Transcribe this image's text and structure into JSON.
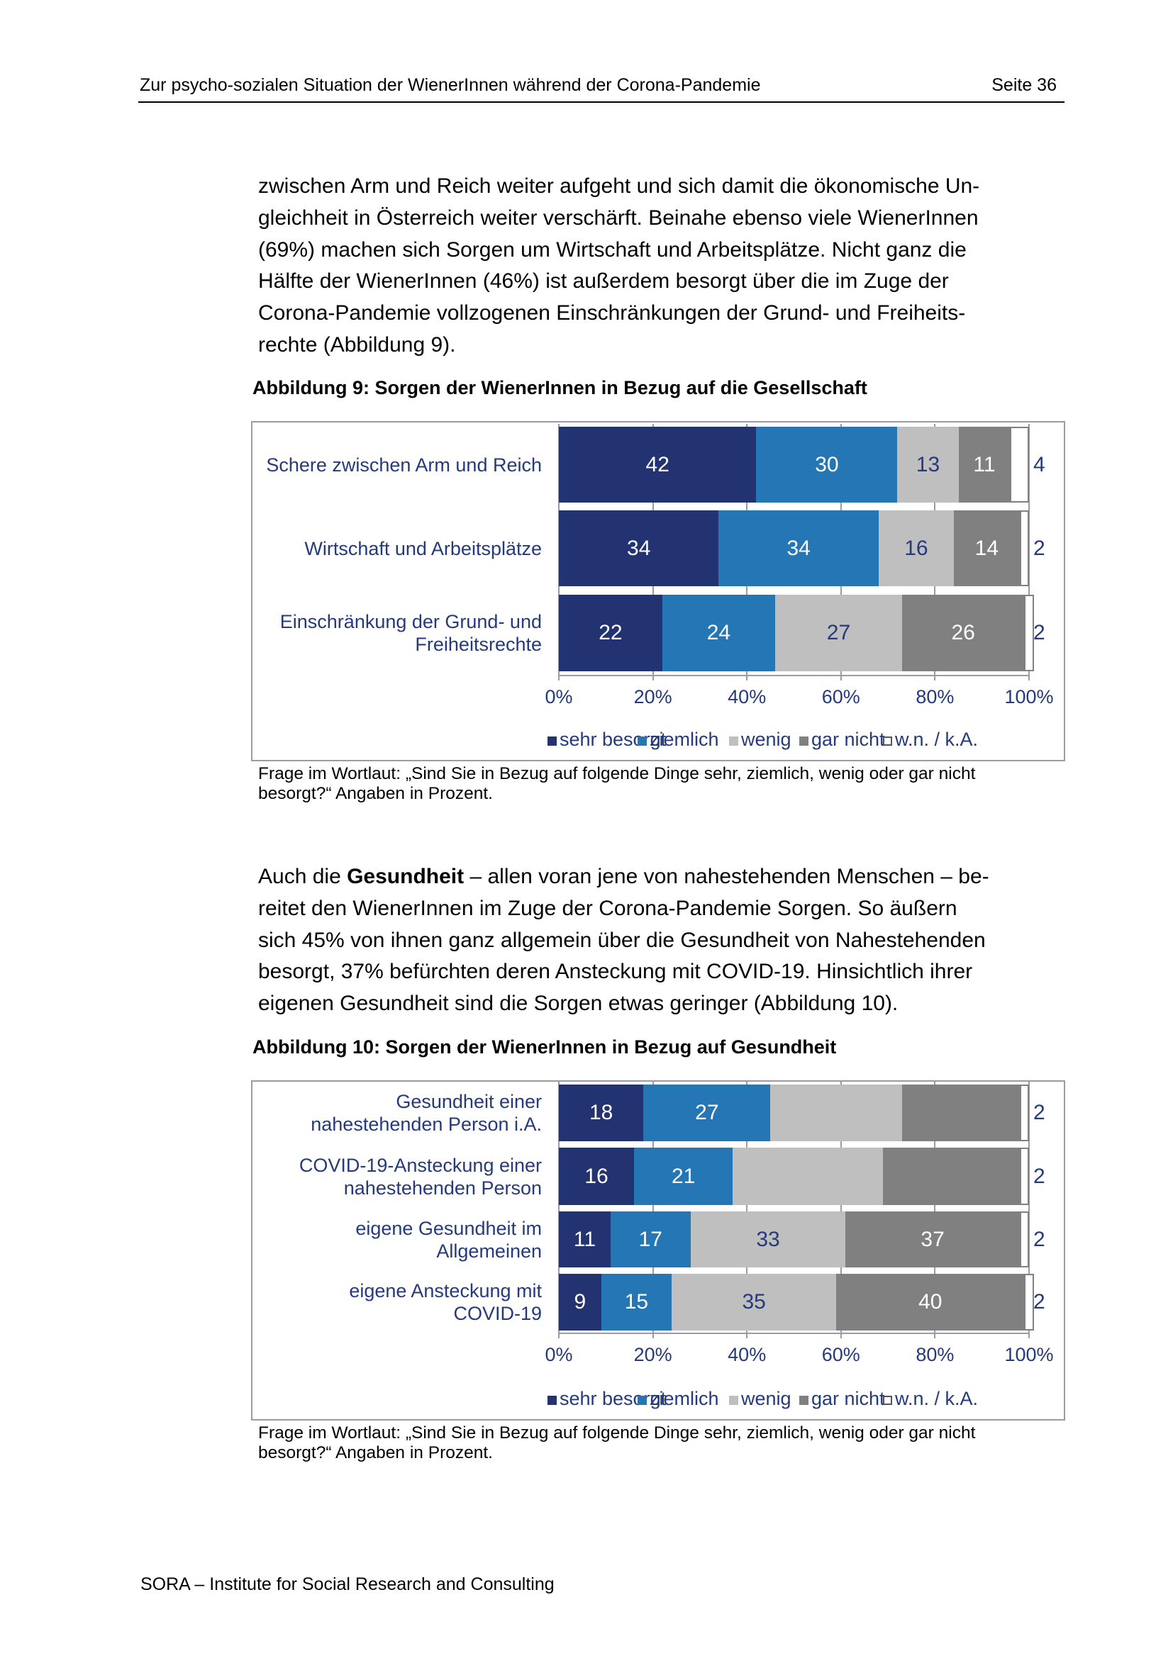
{
  "header": {
    "title": "Zur psycho-sozialen Situation der WienerInnen während der Corona-Pandemie",
    "page": "Seite 36"
  },
  "paragraph1": [
    "zwischen Arm und Reich weiter aufgeht und sich damit die ökonomische Un-",
    "gleichheit in Österreich weiter verschärft. Beinahe ebenso viele WienerInnen",
    "(69%) machen sich Sorgen um Wirtschaft und Arbeitsplätze. Nicht ganz die",
    "Hälfte der WienerInnen (46%) ist außerdem besorgt über die im Zuge der",
    "Corona-Pandemie vollzogenen Einschränkungen der Grund- und Freiheits-",
    "rechte (Abbildung 9)."
  ],
  "paragraph2": {
    "first_pre": "Auch die ",
    "first_bold": "Gesundheit",
    "first_post": " – allen voran jene von nahestehenden Menschen – be-",
    "rest": [
      "reitet den WienerInnen im Zuge der Corona-Pandemie Sorgen. So äußern",
      "sich 45% von ihnen ganz allgemein über die Gesundheit von Nahestehenden",
      "besorgt, 37% befürchten deren Ansteckung mit COVID-19. Hinsichtlich ihrer",
      "eigenen Gesundheit sind die Sorgen etwas geringer (Abbildung 10)."
    ]
  },
  "footer": "SORA – Institute for Social Research and Consulting",
  "colors": {
    "sehr besorgt": "#233372",
    "ziemlich": "#2476b5",
    "wenig": "#bfbfbf",
    "gar nicht": "#808080",
    "w.n. / k.A.": "#ffffff"
  },
  "chart_data": [
    {
      "type": "bar",
      "orientation": "horizontal",
      "stacked": true,
      "title": "Abbildung 9: Sorgen der WienerInnen in Bezug auf die Gesellschaft",
      "categories": [
        [
          "Schere zwischen Arm und Reich"
        ],
        [
          "Wirtschaft und Arbeitsplätze"
        ],
        [
          "Einschränkung der Grund- und",
          "Freiheitsrechte"
        ]
      ],
      "series": [
        {
          "name": "sehr besorgt",
          "values": [
            42,
            34,
            22
          ]
        },
        {
          "name": "ziemlich",
          "values": [
            30,
            34,
            24
          ]
        },
        {
          "name": "wenig",
          "values": [
            13,
            16,
            27
          ]
        },
        {
          "name": "gar nicht",
          "values": [
            11,
            14,
            26
          ]
        },
        {
          "name": "w.n. / k.A.",
          "values": [
            4,
            2,
            2
          ]
        }
      ],
      "labeled": [
        [
          true,
          true,
          true
        ],
        [
          true,
          true,
          true
        ],
        [
          true,
          true,
          true
        ],
        [
          true,
          true,
          true
        ],
        [
          true,
          true,
          true
        ]
      ],
      "xticks": [
        "0%",
        "20%",
        "40%",
        "60%",
        "80%",
        "100%"
      ],
      "xlim": [
        0,
        100
      ],
      "legend": "bottom",
      "note": [
        "Frage im Wortlaut: „Sind Sie in Bezug auf folgende Dinge sehr, ziemlich, wenig oder gar nicht",
        "besorgt?“ Angaben in Prozent."
      ]
    },
    {
      "type": "bar",
      "orientation": "horizontal",
      "stacked": true,
      "title": "Abbildung 10: Sorgen der WienerInnen in Bezug auf Gesundheit",
      "categories": [
        [
          "Gesundheit einer",
          "nahestehenden Person i.A."
        ],
        [
          "COVID-19-Ansteckung einer",
          "nahestehenden Person"
        ],
        [
          "eigene Gesundheit im",
          "Allgemeinen"
        ],
        [
          "eigene Ansteckung mit",
          "COVID-19"
        ]
      ],
      "series": [
        {
          "name": "sehr besorgt",
          "values": [
            18,
            16,
            11,
            9
          ]
        },
        {
          "name": "ziemlich",
          "values": [
            27,
            21,
            17,
            15
          ]
        },
        {
          "name": "wenig",
          "values": [
            28,
            32,
            33,
            35
          ]
        },
        {
          "name": "gar nicht",
          "values": [
            25,
            29,
            37,
            40
          ]
        },
        {
          "name": "w.n. / k.A.",
          "values": [
            2,
            2,
            2,
            2
          ]
        }
      ],
      "labeled": [
        [
          true,
          true,
          true,
          true
        ],
        [
          true,
          true,
          true,
          true
        ],
        [
          false,
          false,
          true,
          true
        ],
        [
          false,
          false,
          true,
          true
        ],
        [
          true,
          true,
          true,
          true
        ]
      ],
      "xticks": [
        "0%",
        "20%",
        "40%",
        "60%",
        "80%",
        "100%"
      ],
      "xlim": [
        0,
        100
      ],
      "legend": "bottom",
      "note": [
        "Frage im Wortlaut: „Sind Sie in Bezug auf folgende Dinge sehr, ziemlich, wenig oder gar nicht",
        "besorgt?“ Angaben in Prozent."
      ]
    }
  ]
}
